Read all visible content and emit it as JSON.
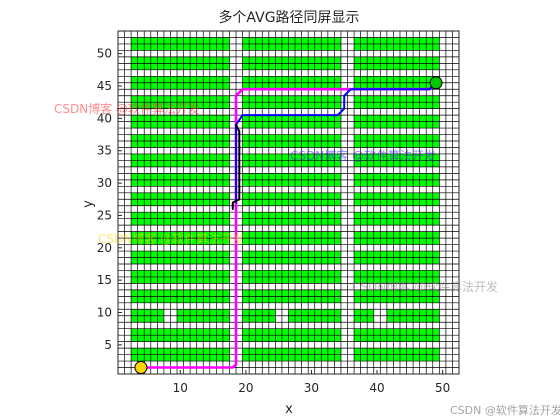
{
  "chart_data": {
    "type": "line",
    "title": "多个AVG路径同屏显示",
    "xlabel": "x",
    "ylabel": "y",
    "xlim": [
      0.5,
      52.5
    ],
    "ylim": [
      0.5,
      53.5
    ],
    "xticks": [
      10,
      20,
      30,
      40,
      50
    ],
    "yticks": [
      5,
      10,
      15,
      20,
      25,
      30,
      35,
      40,
      45,
      50
    ],
    "grid": "every 1 unit, black lines",
    "colors": {
      "shelf": "#00ff00",
      "background": "#ffffff",
      "grid": "#000000"
    },
    "shelf_rows_y": [
      3,
      4,
      6,
      7,
      9,
      10,
      12,
      13,
      15,
      16,
      18,
      19,
      21,
      22,
      24,
      25,
      27,
      28,
      30,
      31,
      33,
      34,
      36,
      37,
      39,
      40,
      42,
      43,
      45,
      46,
      48,
      49,
      51,
      52
    ],
    "shelf_columns_x": [
      [
        3,
        17
      ],
      [
        20,
        34
      ],
      [
        37,
        49
      ]
    ],
    "shelf_gaps": [
      {
        "y": [
          9,
          10
        ],
        "x": [
          8,
          9
        ]
      },
      {
        "y": [
          9,
          10
        ],
        "x": [
          25,
          26
        ]
      },
      {
        "y": [
          9,
          10
        ],
        "x": [
          40,
          41
        ]
      }
    ],
    "start": {
      "x": 4,
      "y": 1.5,
      "color": "#ffd700"
    },
    "goal": {
      "x": 49,
      "y": 45.5,
      "color": "#00c800"
    },
    "series": [
      {
        "color": "#ff00ff",
        "x": [
          4,
          18,
          18.5,
          18.5,
          19.5,
          48,
          49
        ],
        "y": [
          1.5,
          1.5,
          2,
          43.5,
          44.5,
          44.5,
          45.5
        ]
      },
      {
        "color": "#0000ff",
        "x": [
          18.5,
          18.5,
          19.5,
          34,
          35,
          35,
          36,
          48,
          49
        ],
        "y": [
          27,
          39,
          40.5,
          40.5,
          41.5,
          43.5,
          44.5,
          44.5,
          45.5
        ]
      },
      {
        "color": "#000000",
        "x": [
          18,
          18,
          19,
          19,
          18.5
        ],
        "y": [
          26,
          27,
          27.5,
          38,
          39
        ]
      }
    ]
  },
  "watermarks": [
    {
      "text": "CSDN博客 @软件算法开发",
      "color": "#ff3333"
    },
    {
      "text": "CSDN博客 @软件算法开发",
      "color": "#3333ff"
    },
    {
      "text": "CSDN博客 @软件算法开发",
      "color": "#ffd700"
    },
    {
      "text": "CSDN博客 @软件算法开发",
      "color": "#888888"
    },
    {
      "text": "CSDN @软件算法开发",
      "color": "#9a9a9a"
    }
  ]
}
